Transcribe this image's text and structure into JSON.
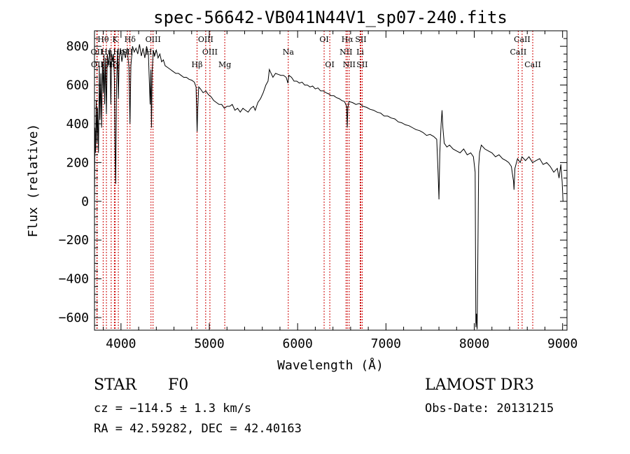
{
  "chart_data": {
    "type": "line",
    "title": "spec-56642-VB041N44V1_sp07-240.fits",
    "xlabel": "Wavelength (Å)",
    "ylabel": "Flux (relative)",
    "xlim": [
      3700,
      9050
    ],
    "ylim": [
      -665,
      880
    ],
    "xticks": [
      4000,
      5000,
      6000,
      7000,
      8000,
      9000
    ],
    "xtick_labels": [
      "4000",
      "5000",
      "6000",
      "7000",
      "8000",
      "9000"
    ],
    "yticks": [
      -600,
      -400,
      -200,
      0,
      200,
      400,
      600,
      800
    ],
    "ytick_labels": [
      "−600",
      "−400",
      "−200",
      "0",
      "200",
      "400",
      "600",
      "800"
    ],
    "series": [
      {
        "name": "flux",
        "points": [
          [
            3700,
            0
          ],
          [
            3705,
            380
          ],
          [
            3712,
            250
          ],
          [
            3720,
            520
          ],
          [
            3728,
            300
          ],
          [
            3735,
            480
          ],
          [
            3745,
            250
          ],
          [
            3755,
            700
          ],
          [
            3762,
            420
          ],
          [
            3772,
            660
          ],
          [
            3780,
            380
          ],
          [
            3790,
            720
          ],
          [
            3800,
            560
          ],
          [
            3808,
            760
          ],
          [
            3815,
            500
          ],
          [
            3825,
            740
          ],
          [
            3835,
            450
          ],
          [
            3845,
            760
          ],
          [
            3860,
            700
          ],
          [
            3875,
            790
          ],
          [
            3885,
            500
          ],
          [
            3895,
            760
          ],
          [
            3905,
            720
          ],
          [
            3915,
            760
          ],
          [
            3925,
            640
          ],
          [
            3933,
            280
          ],
          [
            3940,
            90
          ],
          [
            3950,
            600
          ],
          [
            3960,
            780
          ],
          [
            3970,
            530
          ],
          [
            3980,
            740
          ],
          [
            3995,
            790
          ],
          [
            4010,
            720
          ],
          [
            4030,
            780
          ],
          [
            4050,
            740
          ],
          [
            4070,
            790
          ],
          [
            4090,
            690
          ],
          [
            4102,
            400
          ],
          [
            4112,
            700
          ],
          [
            4130,
            800
          ],
          [
            4150,
            770
          ],
          [
            4170,
            790
          ],
          [
            4190,
            760
          ],
          [
            4210,
            810
          ],
          [
            4230,
            750
          ],
          [
            4250,
            790
          ],
          [
            4270,
            740
          ],
          [
            4290,
            800
          ],
          [
            4310,
            760
          ],
          [
            4325,
            560
          ],
          [
            4330,
            500
          ],
          [
            4338,
            680
          ],
          [
            4345,
            380
          ],
          [
            4352,
            660
          ],
          [
            4365,
            780
          ],
          [
            4380,
            750
          ],
          [
            4400,
            780
          ],
          [
            4420,
            740
          ],
          [
            4440,
            760
          ],
          [
            4460,
            720
          ],
          [
            4480,
            730
          ],
          [
            4500,
            700
          ],
          [
            4530,
            690
          ],
          [
            4560,
            680
          ],
          [
            4590,
            670
          ],
          [
            4620,
            660
          ],
          [
            4650,
            660
          ],
          [
            4680,
            650
          ],
          [
            4710,
            640
          ],
          [
            4740,
            640
          ],
          [
            4770,
            630
          ],
          [
            4800,
            625
          ],
          [
            4830,
            615
          ],
          [
            4850,
            590
          ],
          [
            4858,
            430
          ],
          [
            4862,
            360
          ],
          [
            4868,
            470
          ],
          [
            4880,
            590
          ],
          [
            4900,
            580
          ],
          [
            4930,
            560
          ],
          [
            4960,
            570
          ],
          [
            4990,
            550
          ],
          [
            5020,
            540
          ],
          [
            5050,
            520
          ],
          [
            5080,
            510
          ],
          [
            5110,
            500
          ],
          [
            5140,
            500
          ],
          [
            5170,
            480
          ],
          [
            5200,
            490
          ],
          [
            5230,
            490
          ],
          [
            5260,
            500
          ],
          [
            5290,
            470
          ],
          [
            5320,
            480
          ],
          [
            5350,
            460
          ],
          [
            5380,
            480
          ],
          [
            5410,
            470
          ],
          [
            5440,
            460
          ],
          [
            5470,
            480
          ],
          [
            5500,
            490
          ],
          [
            5520,
            470
          ],
          [
            5550,
            510
          ],
          [
            5580,
            530
          ],
          [
            5610,
            560
          ],
          [
            5640,
            600
          ],
          [
            5665,
            620
          ],
          [
            5680,
            680
          ],
          [
            5700,
            660
          ],
          [
            5720,
            640
          ],
          [
            5750,
            660
          ],
          [
            5780,
            655
          ],
          [
            5810,
            650
          ],
          [
            5840,
            650
          ],
          [
            5870,
            640
          ],
          [
            5890,
            610
          ],
          [
            5900,
            650
          ],
          [
            5930,
            640
          ],
          [
            5960,
            620
          ],
          [
            5990,
            620
          ],
          [
            6020,
            610
          ],
          [
            6050,
            615
          ],
          [
            6080,
            600
          ],
          [
            6110,
            600
          ],
          [
            6140,
            590
          ],
          [
            6170,
            595
          ],
          [
            6200,
            580
          ],
          [
            6230,
            585
          ],
          [
            6260,
            570
          ],
          [
            6290,
            570
          ],
          [
            6320,
            560
          ],
          [
            6350,
            555
          ],
          [
            6380,
            545
          ],
          [
            6410,
            545
          ],
          [
            6440,
            535
          ],
          [
            6470,
            530
          ],
          [
            6500,
            520
          ],
          [
            6530,
            515
          ],
          [
            6555,
            490
          ],
          [
            6562,
            380
          ],
          [
            6568,
            480
          ],
          [
            6580,
            515
          ],
          [
            6620,
            510
          ],
          [
            6660,
            500
          ],
          [
            6700,
            505
          ],
          [
            6740,
            490
          ],
          [
            6780,
            485
          ],
          [
            6820,
            475
          ],
          [
            6860,
            470
          ],
          [
            6900,
            460
          ],
          [
            6940,
            455
          ],
          [
            6980,
            440
          ],
          [
            7020,
            440
          ],
          [
            7060,
            430
          ],
          [
            7100,
            425
          ],
          [
            7140,
            410
          ],
          [
            7180,
            405
          ],
          [
            7220,
            395
          ],
          [
            7260,
            390
          ],
          [
            7300,
            380
          ],
          [
            7340,
            370
          ],
          [
            7380,
            365
          ],
          [
            7420,
            355
          ],
          [
            7460,
            340
          ],
          [
            7500,
            345
          ],
          [
            7540,
            335
          ],
          [
            7575,
            320
          ],
          [
            7590,
            150
          ],
          [
            7600,
            10
          ],
          [
            7610,
            250
          ],
          [
            7625,
            400
          ],
          [
            7635,
            470
          ],
          [
            7645,
            380
          ],
          [
            7660,
            300
          ],
          [
            7690,
            280
          ],
          [
            7720,
            290
          ],
          [
            7760,
            270
          ],
          [
            7800,
            260
          ],
          [
            7840,
            250
          ],
          [
            7880,
            270
          ],
          [
            7920,
            240
          ],
          [
            7960,
            250
          ],
          [
            7990,
            230
          ],
          [
            8010,
            150
          ],
          [
            8018,
            -650
          ],
          [
            8025,
            -580
          ],
          [
            8032,
            -660
          ],
          [
            8040,
            -300
          ],
          [
            8050,
            180
          ],
          [
            8060,
            250
          ],
          [
            8080,
            290
          ],
          [
            8120,
            270
          ],
          [
            8160,
            260
          ],
          [
            8200,
            250
          ],
          [
            8240,
            230
          ],
          [
            8280,
            240
          ],
          [
            8320,
            220
          ],
          [
            8360,
            210
          ],
          [
            8390,
            200
          ],
          [
            8420,
            180
          ],
          [
            8445,
            100
          ],
          [
            8450,
            60
          ],
          [
            8460,
            170
          ],
          [
            8490,
            220
          ],
          [
            8520,
            200
          ],
          [
            8540,
            230
          ],
          [
            8580,
            210
          ],
          [
            8620,
            230
          ],
          [
            8660,
            200
          ],
          [
            8700,
            210
          ],
          [
            8740,
            220
          ],
          [
            8780,
            190
          ],
          [
            8820,
            200
          ],
          [
            8860,
            180
          ],
          [
            8900,
            150
          ],
          [
            8940,
            170
          ],
          [
            8960,
            120
          ],
          [
            8980,
            190
          ],
          [
            8995,
            100
          ],
          [
            9005,
            0
          ]
        ]
      }
    ],
    "lines": [
      {
        "label": "Hθ",
        "wave": 3798,
        "row": 0
      },
      {
        "label": "OII",
        "wave": 3727,
        "row": 1
      },
      {
        "label": "OII",
        "wave": 3730,
        "row": 2
      },
      {
        "label": "K",
        "wave": 3934,
        "row": 0
      },
      {
        "label": "Hη",
        "wave": 3835,
        "row": 1
      },
      {
        "label": "Hζ",
        "wave": 3889,
        "row": 2
      },
      {
        "label": "Hδ",
        "wave": 4102,
        "row": 0
      },
      {
        "label": "Hε",
        "wave": 3970,
        "row": 1
      },
      {
        "label": "Hγ",
        "wave": 3925,
        "row": 2
      },
      {
        "label": "OIII",
        "wave": 4363,
        "row": 0
      },
      {
        "label": "SII",
        "wave": 4072,
        "row": 1
      },
      {
        "label": "Hγ",
        "wave": 4340,
        "row": 1
      },
      {
        "label": "OIII",
        "wave": 4959,
        "row": 0
      },
      {
        "label": "OIII",
        "wave": 5007,
        "row": 1
      },
      {
        "label": "Hβ",
        "wave": 4861,
        "row": 2
      },
      {
        "label": "Mg",
        "wave": 5175,
        "row": 2
      },
      {
        "label": "Na",
        "wave": 5894,
        "row": 1
      },
      {
        "label": "OI",
        "wave": 6300,
        "row": 0
      },
      {
        "label": "OI",
        "wave": 6364,
        "row": 2
      },
      {
        "label": "Hα",
        "wave": 6563,
        "row": 0
      },
      {
        "label": "SII",
        "wave": 6716,
        "row": 0
      },
      {
        "label": "NII",
        "wave": 6548,
        "row": 1
      },
      {
        "label": "Li",
        "wave": 6708,
        "row": 1
      },
      {
        "label": "NII",
        "wave": 6584,
        "row": 2
      },
      {
        "label": "SII",
        "wave": 6731,
        "row": 2
      },
      {
        "label": "CaII",
        "wave": 8542,
        "row": 0
      },
      {
        "label": "CaII",
        "wave": 8498,
        "row": 1
      },
      {
        "label": "CaII",
        "wave": 8662,
        "row": 2
      }
    ]
  },
  "info": {
    "object_class": "STAR",
    "subclass": "F0",
    "survey": "LAMOST DR3",
    "redshift": "cz = −114.5 ± 1.3 km/s",
    "obs_date": "Obs-Date: 20131215",
    "coords": "RA =  42.59282, DEC =  42.40163"
  },
  "colors": {
    "line": "#000000",
    "markers": "#cc0000"
  }
}
